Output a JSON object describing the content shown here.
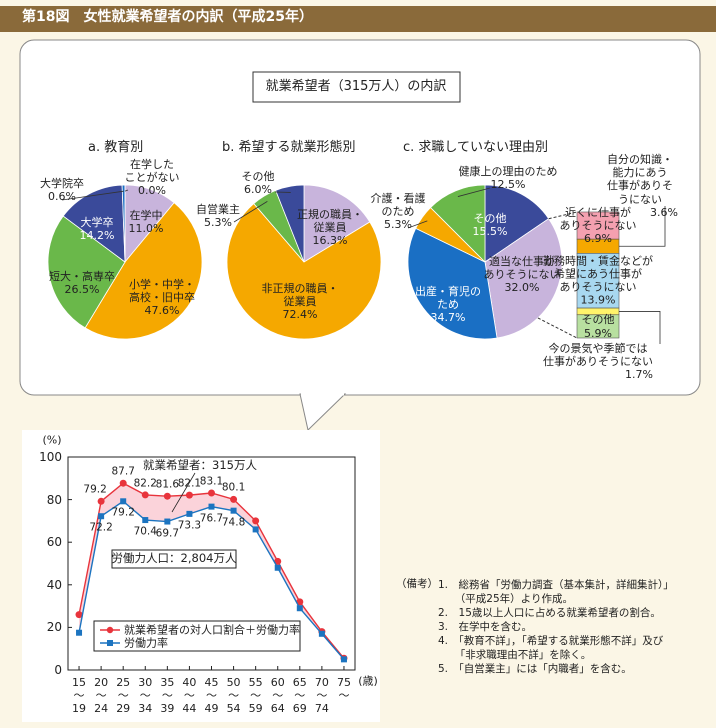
{
  "header": {
    "title": "第18図　女性就業希望者の内訳（平成25年）"
  },
  "panel_title": "就業希望者（315万人）の内訳",
  "chart_data": [
    {
      "type": "pie",
      "title": "a.  教育別",
      "categories": [
        "在学中",
        "小学・中学・\n高校・旧中卒",
        "短大・高専卒",
        "大学卒",
        "大学院卒",
        "在学した\nことがない"
      ],
      "values": [
        11.0,
        47.6,
        26.5,
        14.2,
        0.6,
        0.0
      ],
      "value_labels": [
        "11.0%",
        "47.6%",
        "26.5%",
        "14.2%",
        "0.6%",
        "0.0%"
      ],
      "colors": [
        "#c8b4dc",
        "#f5a800",
        "#6ab84a",
        "#3a4a9a",
        "#1a6fc4",
        "#3a4a9a"
      ]
    },
    {
      "type": "pie",
      "title": "b.  希望する就業形態別",
      "categories": [
        "正規の職員・\n従業員",
        "非正規の職員・\n従業員",
        "自営業主",
        "その他"
      ],
      "values": [
        16.3,
        72.4,
        5.3,
        6.0
      ],
      "value_labels": [
        "16.3%",
        "72.4%",
        "5.3%",
        "6.0%"
      ],
      "colors": [
        "#c8b4dc",
        "#f5a800",
        "#6ab84a",
        "#3a4a9a"
      ]
    },
    {
      "type": "pie",
      "title": "c.  求職していない理由別",
      "categories": [
        "その他",
        "適当な仕事が\nありそうにない",
        "出産・育児の\nため",
        "介護・看護\nのため",
        "健康上の理由のため"
      ],
      "values": [
        15.5,
        32.0,
        34.7,
        5.3,
        12.5
      ],
      "value_labels": [
        "15.5%",
        "32.0%",
        "34.7%",
        "5.3%",
        "12.5%"
      ],
      "colors": [
        "#3a4a9a",
        "#c8b4dc",
        "#1a6fc4",
        "#f5a800",
        "#6ab84a"
      ]
    },
    {
      "type": "stacked_bar",
      "categories": [
        "近くに仕事が\nありそうにない",
        "自分の知識・能力にあう\n仕事がありそうにない",
        "勤務時間・賃金などが\n希望にあう仕事が\nありそうにない",
        "今の景気や季節では\n仕事がありそうにない",
        "その他"
      ],
      "values": [
        6.9,
        3.6,
        13.9,
        1.7,
        5.9
      ],
      "value_labels": [
        "6.9%",
        "3.6%",
        "13.9%",
        "1.7%",
        "5.9%"
      ],
      "colors": [
        "#f4a0b0",
        "#f5a800",
        "#a8d8f0",
        "#fff36a",
        "#b8e0a0"
      ]
    },
    {
      "type": "line",
      "ylabel": "(%)",
      "xlabel": "(歳)",
      "annotations": [
        "就業希望者：315万人",
        "労働力人口：2,804万人"
      ],
      "categories": [
        "15\n～\n19",
        "20\n～\n24",
        "25\n～\n29",
        "30\n～\n34",
        "35\n～\n39",
        "40\n～\n44",
        "45\n～\n49",
        "50\n～\n54",
        "55\n～\n59",
        "60\n～\n64",
        "65\n～\n69",
        "70\n～\n74",
        "75\n～"
      ],
      "ylim": [
        0,
        100
      ],
      "yticks": [
        0,
        20,
        40,
        60,
        80,
        100
      ],
      "series": [
        {
          "name": "就業希望者の対人口割合＋労働力率",
          "color": "#e8343c",
          "values": [
            26,
            79.2,
            87.7,
            82.2,
            81.6,
            82.1,
            83.1,
            80.1,
            70,
            51,
            32,
            18,
            5.5
          ],
          "value_labels": [
            null,
            "79.2",
            "87.7",
            "82.2",
            "81.6",
            "82.1",
            "83.1",
            "80.1",
            null,
            null,
            null,
            null,
            null
          ]
        },
        {
          "name": "労働力率",
          "color": "#1c74c0",
          "values": [
            17.5,
            72.2,
            79.2,
            70.4,
            69.7,
            73.3,
            76.7,
            74.8,
            66,
            48,
            29,
            17,
            5
          ],
          "value_labels": [
            null,
            "72.2",
            "79.2",
            "70.4",
            "69.7",
            "73.3",
            "76.7",
            "74.8",
            null,
            null,
            null,
            null,
            null
          ]
        }
      ]
    }
  ],
  "notes": {
    "label": "（備考）",
    "items": [
      "1.　総務省「労働力調査（基本集計，詳細集計）」\n（平成25年）より作成。",
      "2.　15歳以上人口に占める就業希望者の割合。",
      "3.　在学中を含む。",
      "4.　「教育不詳」，「希望する就業形態不詳」及び\n「非求職理由不詳」を除く。",
      "5.　「自営業主」には「内職者」を含む。"
    ]
  }
}
